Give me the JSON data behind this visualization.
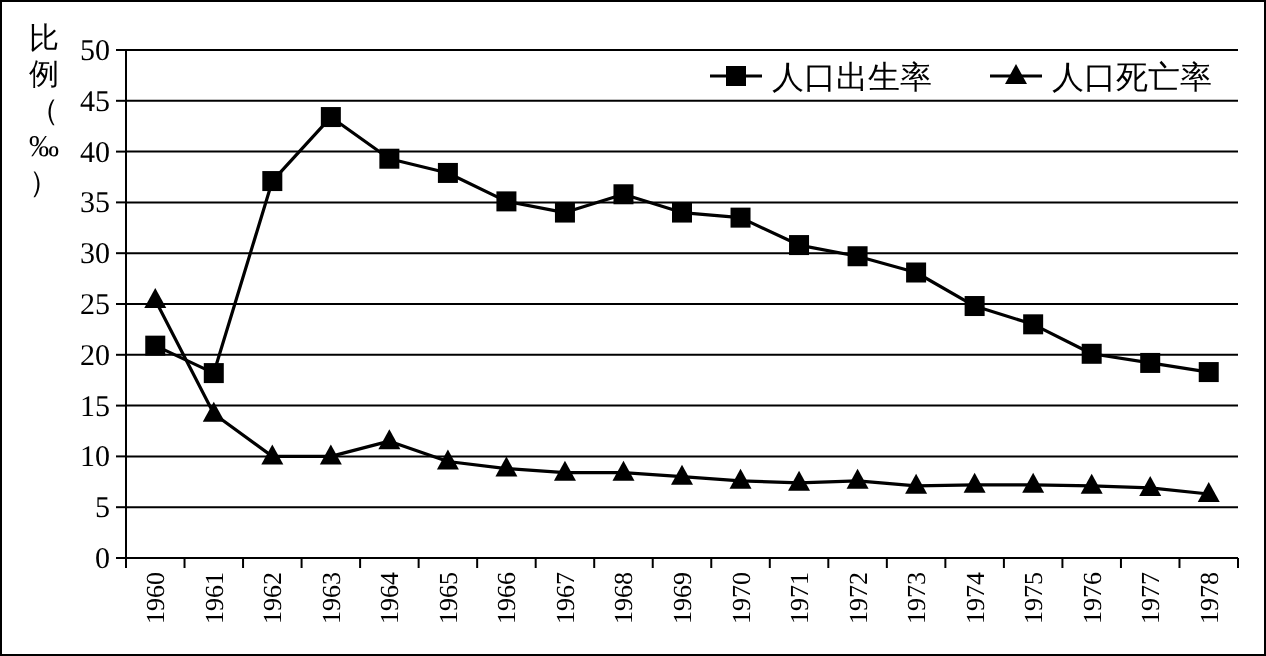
{
  "chart_data": {
    "type": "line",
    "ylabel": "比例（‰）",
    "categories": [
      "1960",
      "1961",
      "1962",
      "1963",
      "1964",
      "1965",
      "1966",
      "1967",
      "1968",
      "1969",
      "1970",
      "1971",
      "1972",
      "1973",
      "1974",
      "1975",
      "1976",
      "1977",
      "1978"
    ],
    "series": [
      {
        "name": "人口出生率",
        "color": "#000000",
        "marker": "square",
        "values": [
          20.9,
          18.2,
          37.1,
          43.4,
          39.3,
          37.9,
          35.1,
          34.0,
          35.8,
          34.0,
          33.5,
          30.8,
          29.7,
          28.1,
          24.8,
          23.0,
          20.1,
          19.2,
          18.3
        ]
      },
      {
        "name": "人口死亡率",
        "color": "#000000",
        "marker": "triangle",
        "values": [
          25.4,
          14.2,
          10.0,
          10.0,
          11.5,
          9.5,
          8.8,
          8.4,
          8.4,
          8.0,
          7.6,
          7.4,
          7.6,
          7.1,
          7.2,
          7.2,
          7.1,
          6.9,
          6.3
        ]
      }
    ],
    "ylim": [
      0,
      50
    ],
    "yticks": [
      0,
      5,
      10,
      15,
      20,
      25,
      30,
      35,
      40,
      45,
      50
    ],
    "grid": "y",
    "legend": "top right"
  }
}
